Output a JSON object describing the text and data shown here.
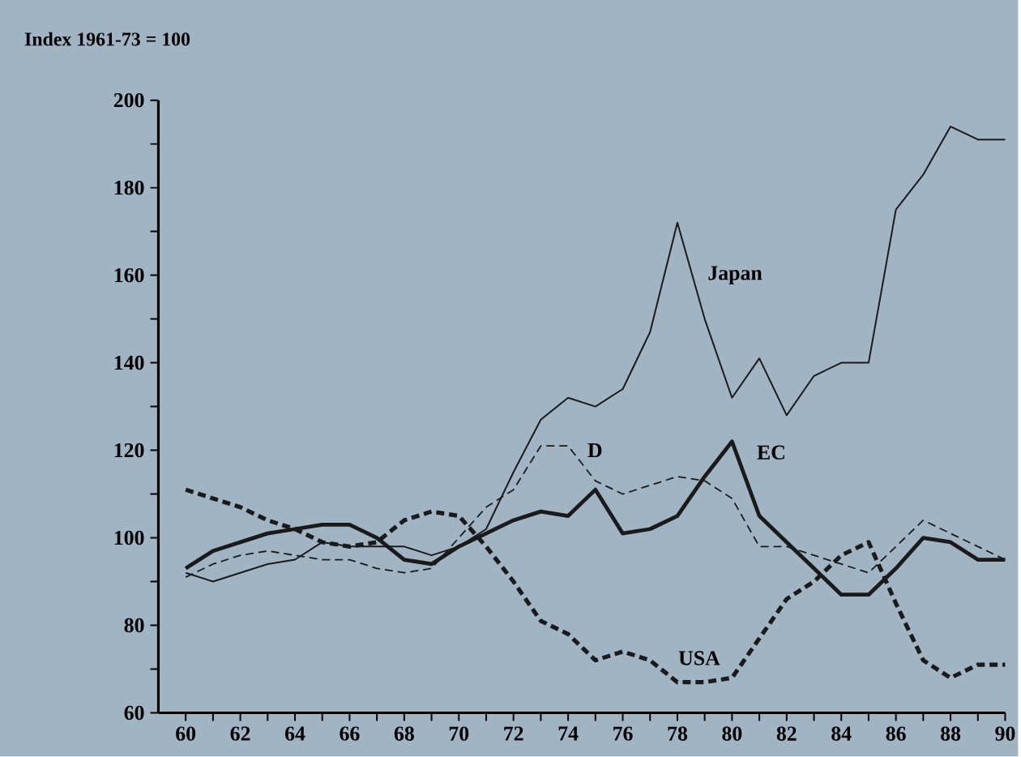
{
  "chart_data": {
    "type": "line",
    "ylabel": "Index 1961-73 = 100",
    "x": [
      60,
      61,
      62,
      63,
      64,
      65,
      66,
      67,
      68,
      69,
      70,
      71,
      72,
      73,
      74,
      75,
      76,
      77,
      78,
      79,
      80,
      81,
      82,
      83,
      84,
      85,
      86,
      87,
      88,
      89,
      90
    ],
    "series": [
      {
        "name": "Japan",
        "color": "#1a1a1a",
        "line_style": "solid",
        "values": [
          92,
          90,
          92,
          94,
          95,
          99,
          98,
          98,
          98,
          96,
          98,
          102,
          115,
          127,
          132,
          130,
          134,
          147,
          172,
          150,
          132,
          141,
          128,
          137,
          140,
          140,
          175,
          183,
          194,
          191,
          191
        ]
      },
      {
        "name": "D",
        "color": "#1a1a1a",
        "line_style": "dashed",
        "values": [
          91,
          94,
          96,
          97,
          96,
          95,
          95,
          93,
          92,
          93,
          100,
          107,
          111,
          121,
          121,
          113,
          110,
          112,
          114,
          113,
          109,
          98,
          98,
          96,
          94,
          92,
          98,
          104,
          101,
          98,
          95
        ]
      },
      {
        "name": "EC",
        "color": "#1a1a1a",
        "line_style": "solid",
        "values": [
          93,
          97,
          99,
          101,
          102,
          103,
          103,
          100,
          95,
          94,
          98,
          101,
          104,
          106,
          105,
          111,
          101,
          102,
          105,
          114,
          122,
          105,
          99,
          93,
          87,
          87,
          93,
          100,
          99,
          95,
          95
        ]
      },
      {
        "name": "USA",
        "color": "#1a1a1a",
        "line_style": "dashed",
        "values": [
          111,
          109,
          107,
          104,
          102,
          99,
          98,
          99,
          104,
          106,
          105,
          98,
          90,
          81,
          78,
          72,
          74,
          72,
          67,
          67,
          68,
          77,
          86,
          90,
          96,
          99,
          85,
          72,
          68,
          71,
          71
        ]
      }
    ],
    "xlim": [
      59,
      90
    ],
    "ylim": [
      60,
      200
    ],
    "xticks": [
      60,
      {
        "value": 61,
        "label": null
      },
      62,
      {
        "value": 63,
        "label": null
      },
      64,
      {
        "value": 65,
        "label": null
      },
      66,
      {
        "value": 67,
        "label": null
      },
      68,
      {
        "value": 69,
        "label": null
      },
      70,
      {
        "value": 71,
        "label": null
      },
      72,
      {
        "value": 73,
        "label": null
      },
      74,
      {
        "value": 75,
        "label": null
      },
      76,
      {
        "value": 77,
        "label": null
      },
      78,
      {
        "value": 79,
        "label": null
      },
      80,
      {
        "value": 81,
        "label": null
      },
      82,
      {
        "value": 83,
        "label": null
      },
      84,
      {
        "value": 85,
        "label": null
      },
      86,
      {
        "value": 87,
        "label": null
      },
      88,
      {
        "value": 89,
        "label": null
      },
      90
    ],
    "yticks": [
      60,
      {
        "value": 70,
        "label": null
      },
      80,
      {
        "value": 90,
        "label": null
      },
      100,
      {
        "value": 110,
        "label": null
      },
      120,
      {
        "value": 130,
        "label": null
      },
      140,
      {
        "value": 150,
        "label": null
      },
      160,
      {
        "value": 170,
        "label": null
      },
      180,
      {
        "value": 190,
        "label": null
      },
      200
    ]
  }
}
